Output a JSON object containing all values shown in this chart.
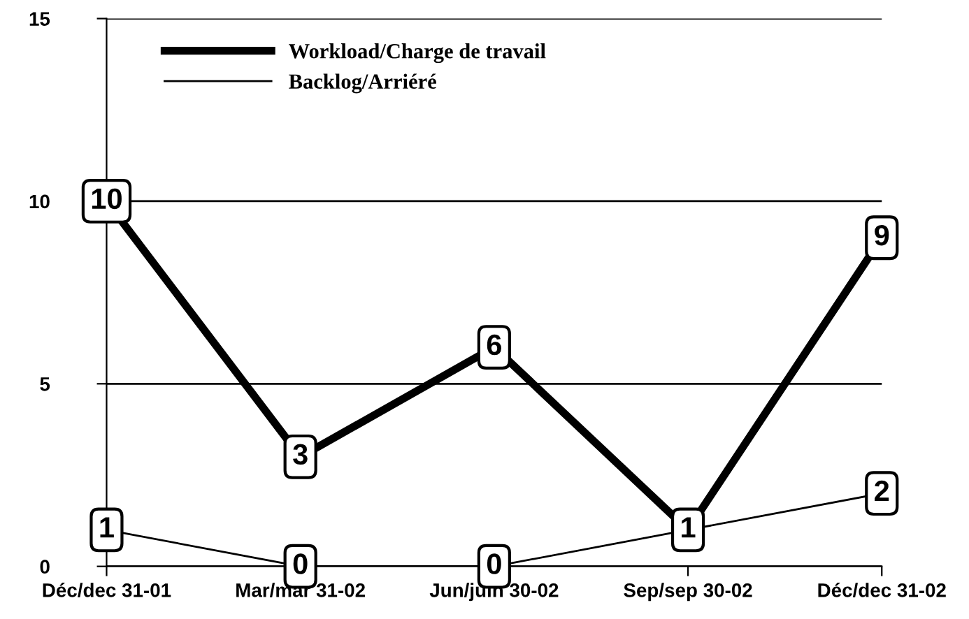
{
  "chart_data": {
    "type": "line",
    "categories": [
      "Déc/dec 31-01",
      "Mar/mar 31-02",
      "Jun/juin 30-02",
      "Sep/sep 30-02",
      "Déc/dec 31-02"
    ],
    "series": [
      {
        "name": "Workload/Charge de travail",
        "color": "#000000",
        "values": [
          10,
          3,
          6,
          1,
          9
        ],
        "value_labels": [
          "10",
          "3",
          "6",
          "1",
          "9"
        ]
      },
      {
        "name": "Backlog/Arriéré",
        "color": "#000000",
        "values": [
          1,
          0,
          0,
          1,
          2
        ],
        "value_labels": [
          "1",
          "0",
          "0",
          null,
          "2"
        ]
      }
    ],
    "ylim": [
      0,
      15
    ],
    "yticks": [
      0,
      5,
      10,
      15
    ],
    "grid": "y",
    "legend": "top left",
    "marker": "square",
    "line_style": "solid"
  }
}
